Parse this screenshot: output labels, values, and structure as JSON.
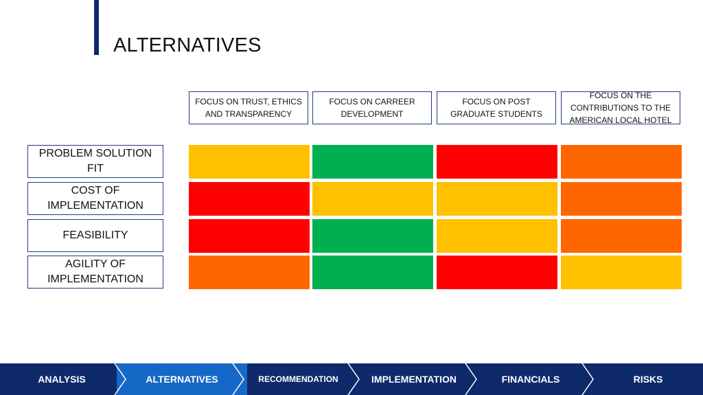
{
  "title": "ALTERNATIVES",
  "columns": [
    "FOCUS ON TRUST, ETHICS AND TRANSPARENCY",
    "FOCUS ON CARREER DEVELOPMENT",
    "FOCUS ON POST GRADUATE STUDENTS",
    "FOCUS ON THE CONTRIBUTIONS TO THE AMERICAN LOCAL HOTEL"
  ],
  "rows": [
    {
      "label": "PROBLEM SOLUTION FIT",
      "ratings": [
        "yellow",
        "green",
        "red",
        "orange"
      ]
    },
    {
      "label": "COST OF IMPLEMENTATION",
      "ratings": [
        "red",
        "yellow",
        "yellow",
        "orange"
      ]
    },
    {
      "label": "FEASIBILITY",
      "ratings": [
        "red",
        "green",
        "yellow",
        "orange"
      ]
    },
    {
      "label": "AGILITY OF IMPLEMENTATION",
      "ratings": [
        "orange",
        "green",
        "red",
        "yellow"
      ]
    }
  ],
  "colors": {
    "yellow": "#ffc000",
    "green": "#00b050",
    "red": "#ff0000",
    "orange": "#ff6600",
    "nav_bg": "#0f2a6b",
    "nav_active": "#1668c6"
  },
  "nav": {
    "items": [
      "ANALYSIS",
      "ALTERNATIVES",
      "RECOMMENDATION",
      "IMPLEMENTATION",
      "FINANCIALS",
      "RISKS"
    ],
    "active": "ALTERNATIVES"
  }
}
